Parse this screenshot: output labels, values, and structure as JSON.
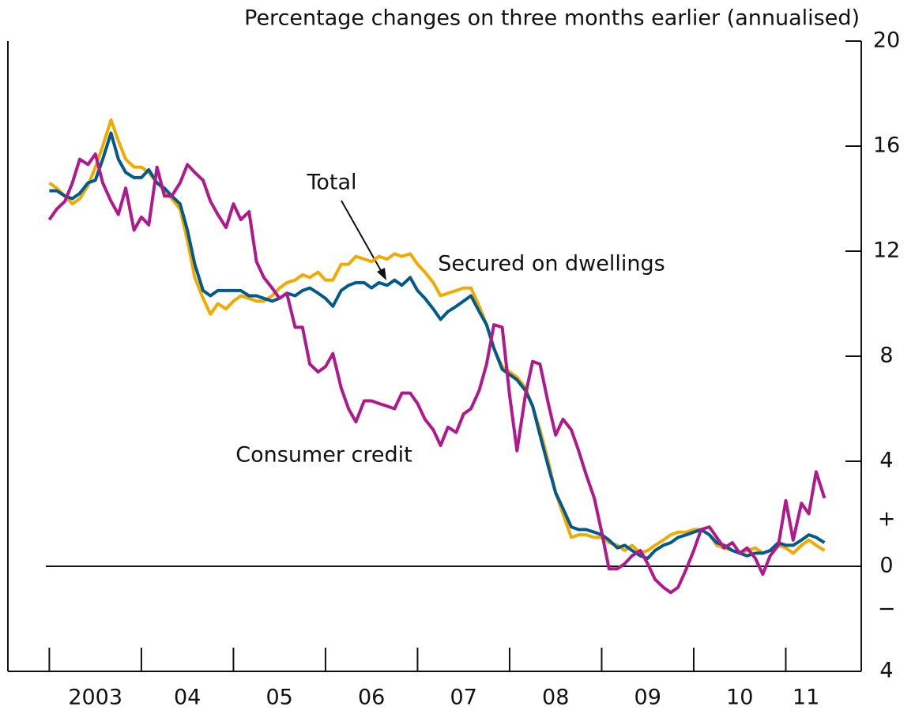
{
  "chart_data": {
    "type": "line",
    "y_axis_title": "Percentage changes on three months earlier (annualised)",
    "sign_labels": [
      "+",
      "−"
    ],
    "x": [
      2003,
      2003.08,
      2003.17,
      2003.25,
      2003.33,
      2003.42,
      2003.5,
      2003.58,
      2003.67,
      2003.75,
      2003.83,
      2003.92,
      2004,
      2004.08,
      2004.17,
      2004.25,
      2004.33,
      2004.42,
      2004.5,
      2004.58,
      2004.67,
      2004.75,
      2004.83,
      2004.92,
      2005,
      2005.08,
      2005.17,
      2005.25,
      2005.33,
      2005.42,
      2005.5,
      2005.58,
      2005.67,
      2005.75,
      2005.83,
      2005.92,
      2006,
      2006.08,
      2006.17,
      2006.25,
      2006.33,
      2006.42,
      2006.5,
      2006.58,
      2006.67,
      2006.75,
      2006.83,
      2006.92,
      2007,
      2007.08,
      2007.17,
      2007.25,
      2007.33,
      2007.42,
      2007.5,
      2007.58,
      2007.67,
      2007.75,
      2007.83,
      2007.92,
      2008,
      2008.08,
      2008.17,
      2008.25,
      2008.33,
      2008.42,
      2008.5,
      2008.58,
      2008.67,
      2008.75,
      2008.83,
      2008.92,
      2009,
      2009.08,
      2009.17,
      2009.25,
      2009.33,
      2009.42,
      2009.5,
      2009.58,
      2009.67,
      2009.75,
      2009.83,
      2009.92,
      2010,
      2010.08,
      2010.17,
      2010.25,
      2010.33,
      2010.42,
      2010.5,
      2010.58,
      2010.67,
      2010.75,
      2010.83,
      2010.92,
      2011,
      2011.08,
      2011.17,
      2011.25,
      2011.33,
      2011.42
    ],
    "series": [
      {
        "name": "Secured on dwellings",
        "color": "#f2a900",
        "values": [
          14.6,
          14.4,
          14.1,
          13.8,
          14.0,
          14.5,
          15.2,
          16.0,
          17.0,
          16.2,
          15.5,
          15.2,
          15.2,
          15.0,
          14.6,
          14.3,
          14.0,
          13.6,
          12.4,
          11.0,
          10.2,
          9.6,
          10.0,
          9.8,
          10.1,
          10.3,
          10.2,
          10.1,
          10.1,
          10.3,
          10.6,
          10.8,
          10.9,
          11.1,
          11.0,
          11.2,
          10.9,
          10.9,
          11.5,
          11.5,
          11.8,
          11.7,
          11.6,
          11.8,
          11.7,
          11.9,
          11.8,
          11.9,
          11.5,
          11.2,
          10.8,
          10.3,
          10.4,
          10.5,
          10.6,
          10.6,
          9.9,
          9.2,
          8.3,
          7.6,
          7.4,
          7.2,
          6.8,
          6.1,
          5.2,
          4.0,
          2.8,
          2.0,
          1.1,
          1.2,
          1.2,
          1.1,
          1.1,
          0.9,
          0.8,
          0.6,
          0.8,
          0.5,
          0.6,
          0.8,
          1.0,
          1.2,
          1.3,
          1.3,
          1.4,
          1.4,
          1.2,
          0.8,
          0.7,
          0.6,
          0.5,
          0.6,
          0.7,
          0.5,
          0.6,
          0.8,
          0.7,
          0.5,
          0.8,
          1.0,
          0.8,
          0.6
        ]
      },
      {
        "name": "Total",
        "color": "#005a8c",
        "values": [
          14.3,
          14.3,
          14.1,
          14.0,
          14.2,
          14.6,
          14.7,
          15.5,
          16.5,
          15.5,
          15.0,
          14.8,
          14.8,
          15.1,
          14.6,
          14.4,
          14.1,
          13.8,
          12.8,
          11.5,
          10.5,
          10.3,
          10.5,
          10.5,
          10.5,
          10.5,
          10.3,
          10.3,
          10.2,
          10.1,
          10.2,
          10.4,
          10.3,
          10.5,
          10.6,
          10.4,
          10.2,
          9.9,
          10.5,
          10.7,
          10.8,
          10.8,
          10.6,
          10.8,
          10.7,
          10.9,
          10.7,
          11.0,
          10.5,
          10.2,
          9.8,
          9.4,
          9.7,
          9.9,
          10.1,
          10.3,
          9.7,
          9.2,
          8.3,
          7.5,
          7.3,
          7.1,
          6.7,
          6.1,
          5.0,
          3.8,
          2.8,
          2.2,
          1.5,
          1.4,
          1.4,
          1.3,
          1.2,
          1.0,
          0.7,
          0.8,
          0.6,
          0.4,
          0.3,
          0.6,
          0.8,
          0.9,
          1.1,
          1.2,
          1.3,
          1.4,
          1.2,
          0.9,
          0.8,
          0.6,
          0.5,
          0.4,
          0.5,
          0.5,
          0.6,
          0.9,
          0.8,
          0.8,
          1.0,
          1.2,
          1.1,
          0.9
        ]
      },
      {
        "name": "Consumer credit",
        "color": "#b0198c",
        "values": [
          13.2,
          13.6,
          13.9,
          14.6,
          15.5,
          15.3,
          15.7,
          14.6,
          13.9,
          13.4,
          14.4,
          12.8,
          13.3,
          13.0,
          15.2,
          14.1,
          14.1,
          14.6,
          15.3,
          15.0,
          14.7,
          13.9,
          13.4,
          12.9,
          13.8,
          13.2,
          13.5,
          11.6,
          11.0,
          10.6,
          10.2,
          10.4,
          9.1,
          9.1,
          7.7,
          7.4,
          7.6,
          8.1,
          6.8,
          6.0,
          5.5,
          6.3,
          6.3,
          6.2,
          6.1,
          6.0,
          6.6,
          6.6,
          6.2,
          5.6,
          5.2,
          4.6,
          5.3,
          5.1,
          5.8,
          6.0,
          6.7,
          7.7,
          9.2,
          9.1,
          6.5,
          4.4,
          6.5,
          7.8,
          7.7,
          6.2,
          5.0,
          5.6,
          5.2,
          4.4,
          3.5,
          2.6,
          1.3,
          -0.1,
          -0.1,
          0.1,
          0.4,
          0.6,
          0.1,
          -0.5,
          -0.8,
          -1.0,
          -0.8,
          -0.1,
          0.6,
          1.4,
          1.5,
          1.1,
          0.7,
          0.9,
          0.5,
          0.7,
          0.3,
          -0.3,
          0.4,
          0.8,
          2.5,
          1.0,
          2.4,
          2.0,
          3.6,
          2.6
        ]
      }
    ],
    "xlim": [
      2002.55,
      2011.82
    ],
    "xticks": [
      {
        "value": 2003.5,
        "label": "2003"
      },
      {
        "value": 2004.5,
        "label": "04"
      },
      {
        "value": 2005.5,
        "label": "05"
      },
      {
        "value": 2006.5,
        "label": "06"
      },
      {
        "value": 2007.5,
        "label": "07"
      },
      {
        "value": 2008.5,
        "label": "08"
      },
      {
        "value": 2009.5,
        "label": "09"
      },
      {
        "value": 2010.5,
        "label": "10"
      },
      {
        "value": 2011.22,
        "label": "11"
      }
    ],
    "ylim": [
      -4,
      20
    ],
    "yticks": [
      {
        "value": -4,
        "label": "4"
      },
      0,
      4,
      8,
      12,
      16,
      20
    ],
    "zero_line": true,
    "grid": false
  }
}
